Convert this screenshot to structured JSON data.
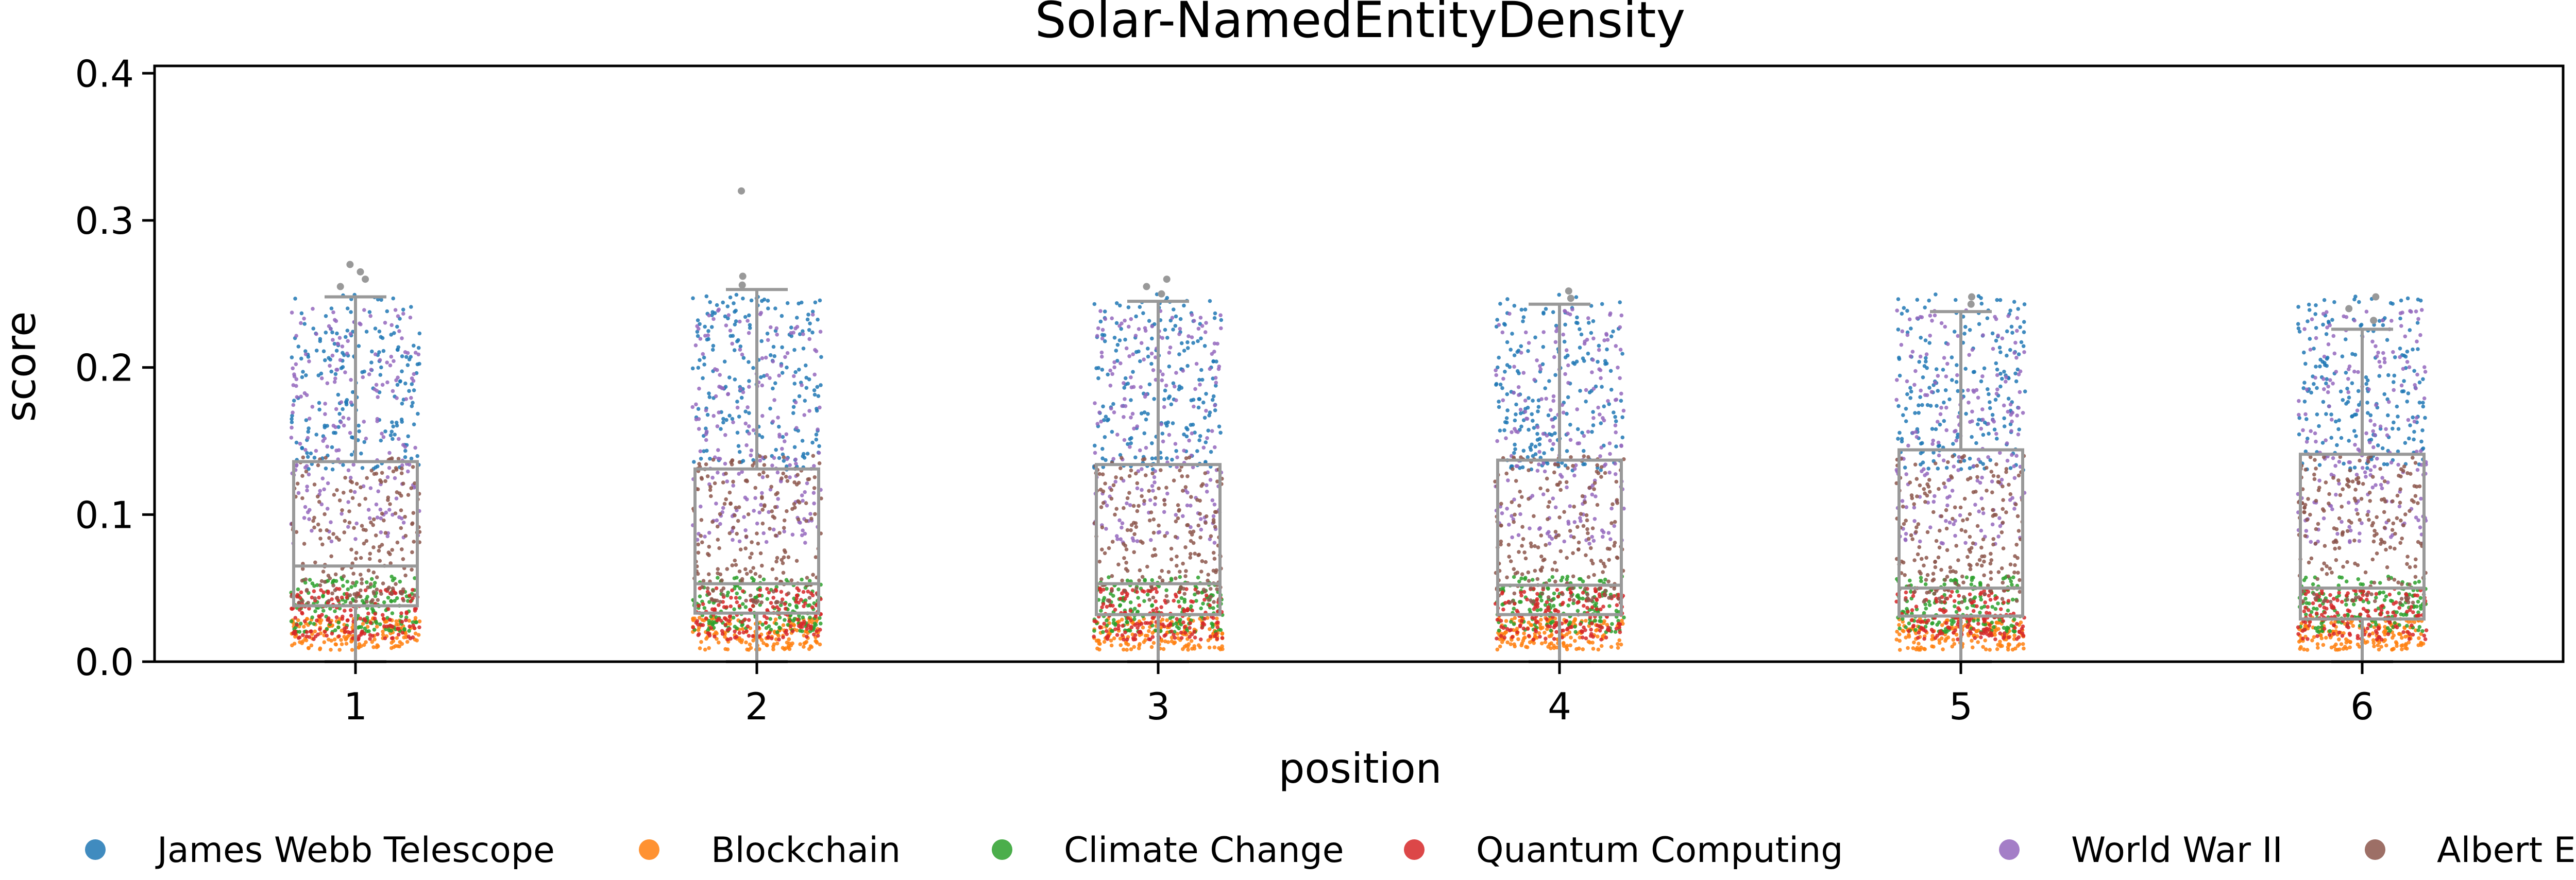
{
  "chart_data": {
    "type": "box-strip",
    "title": "Solar-NamedEntityDensity",
    "xlabel": "position",
    "ylabel": "score",
    "categories": [
      "1",
      "2",
      "3",
      "4",
      "5",
      "6"
    ],
    "ylim": [
      0,
      0.405
    ],
    "yticks": [
      0.0,
      0.1,
      0.2,
      0.3,
      0.4
    ],
    "ytick_labels": [
      "0.0",
      "0.1",
      "0.2",
      "0.3",
      "0.4"
    ],
    "grid": false,
    "legend_position": "bottom",
    "boxes": [
      {
        "category": "1",
        "whislo": 0.0,
        "q1": 0.038,
        "med": 0.065,
        "q3": 0.136,
        "whishi": 0.248,
        "fliers": [
          0.255,
          0.26,
          0.265,
          0.27
        ]
      },
      {
        "category": "2",
        "whislo": 0.0,
        "q1": 0.033,
        "med": 0.053,
        "q3": 0.131,
        "whishi": 0.253,
        "fliers": [
          0.256,
          0.262,
          0.32
        ]
      },
      {
        "category": "3",
        "whislo": 0.0,
        "q1": 0.032,
        "med": 0.053,
        "q3": 0.134,
        "whishi": 0.245,
        "fliers": [
          0.25,
          0.255,
          0.26
        ]
      },
      {
        "category": "4",
        "whislo": 0.0,
        "q1": 0.032,
        "med": 0.052,
        "q3": 0.137,
        "whishi": 0.243,
        "fliers": [
          0.247,
          0.252
        ]
      },
      {
        "category": "5",
        "whislo": 0.0,
        "q1": 0.031,
        "med": 0.05,
        "q3": 0.144,
        "whishi": 0.238,
        "fliers": [
          0.243,
          0.248
        ]
      },
      {
        "category": "6",
        "whislo": 0.0,
        "q1": 0.029,
        "med": 0.05,
        "q3": 0.141,
        "whishi": 0.226,
        "fliers": [
          0.232,
          0.24,
          0.248
        ]
      }
    ],
    "series": [
      {
        "name": "James Webb Telescope",
        "color": "#1f77b4",
        "low": 0.13,
        "high": 0.25,
        "count": 200
      },
      {
        "name": "Blockchain",
        "color": "#ff7f0e",
        "low": 0.008,
        "high": 0.03,
        "count": 160
      },
      {
        "name": "Climate Change",
        "color": "#2ca02c",
        "low": 0.02,
        "high": 0.058,
        "count": 160
      },
      {
        "name": "Quantum Computing",
        "color": "#d62728",
        "low": 0.015,
        "high": 0.05,
        "count": 160
      },
      {
        "name": "World War II",
        "color": "#9467bd",
        "low": 0.08,
        "high": 0.24,
        "count": 200
      },
      {
        "name": "Albert Einstein",
        "color": "#8c564b",
        "low": 0.04,
        "high": 0.14,
        "count": 200
      }
    ],
    "box_color": "#999999",
    "flier_color": "#999999"
  }
}
